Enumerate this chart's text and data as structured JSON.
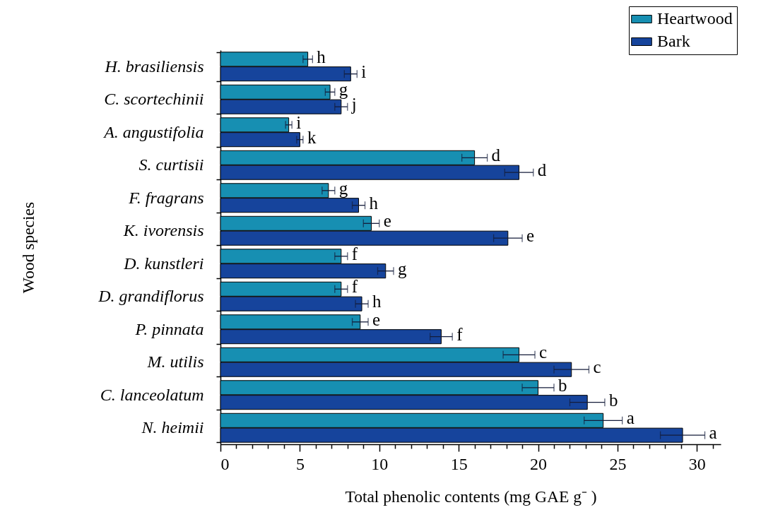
{
  "chart_data": {
    "type": "bar",
    "orientation": "horizontal",
    "xlabel": "Total phenolic contents (mg GAE g⁻ )",
    "ylabel": "Wood species",
    "categories": [
      "H. brasiliensis",
      "C. scortechinii",
      "A. angustifolia",
      "S. curtisii",
      "F. fragrans",
      "K. ivorensis",
      "D. kunstleri",
      "D. grandiflorus",
      "P. pinnata",
      "M. utilis",
      "C. lanceolatum",
      "N. heimii"
    ],
    "series": [
      {
        "name": "Heartwood",
        "color": "#178fb2",
        "values": [
          5.5,
          6.9,
          4.3,
          16.0,
          6.8,
          9.5,
          7.6,
          7.6,
          8.8,
          18.8,
          20.0,
          24.1
        ],
        "errors": [
          0.3,
          0.3,
          0.2,
          0.8,
          0.4,
          0.5,
          0.4,
          0.4,
          0.5,
          1.0,
          1.0,
          1.2
        ],
        "value_labels": [
          "h",
          "g",
          "i",
          "d",
          "g",
          "e",
          "f",
          "f",
          "e",
          "c",
          "b",
          "a"
        ]
      },
      {
        "name": "Bark",
        "color": "#16449c",
        "values": [
          8.2,
          7.6,
          5.0,
          18.8,
          8.7,
          18.1,
          10.4,
          8.9,
          13.9,
          22.1,
          23.1,
          29.1
        ],
        "errors": [
          0.4,
          0.4,
          0.2,
          0.9,
          0.4,
          0.9,
          0.5,
          0.4,
          0.7,
          1.1,
          1.1,
          1.4
        ],
        "value_labels": [
          "i",
          "j",
          "k",
          "d",
          "h",
          "e",
          "g",
          "h",
          "f",
          "c",
          "b",
          "a"
        ]
      }
    ],
    "xlim": [
      0,
      31.5
    ],
    "xticks": [
      0,
      {
        "value": 1,
        "label": null
      },
      {
        "value": 2,
        "label": null
      },
      {
        "value": 3,
        "label": null
      },
      {
        "value": 4,
        "label": null
      },
      5,
      {
        "value": 6,
        "label": null
      },
      {
        "value": 7,
        "label": null
      },
      {
        "value": 8,
        "label": null
      },
      {
        "value": 9,
        "label": null
      },
      10,
      {
        "value": 11,
        "label": null
      },
      {
        "value": 12,
        "label": null
      },
      {
        "value": 13,
        "label": null
      },
      {
        "value": 14,
        "label": null
      },
      15,
      {
        "value": 16,
        "label": null
      },
      {
        "value": 17,
        "label": null
      },
      {
        "value": 18,
        "label": null
      },
      {
        "value": 19,
        "label": null
      },
      20,
      {
        "value": 21,
        "label": null
      },
      {
        "value": 22,
        "label": null
      },
      {
        "value": 23,
        "label": null
      },
      {
        "value": 24,
        "label": null
      },
      25,
      {
        "value": 26,
        "label": null
      },
      {
        "value": 27,
        "label": null
      },
      {
        "value": 28,
        "label": null
      },
      {
        "value": 29,
        "label": null
      },
      30,
      {
        "value": 31,
        "label": null
      }
    ],
    "legend": "top right"
  }
}
